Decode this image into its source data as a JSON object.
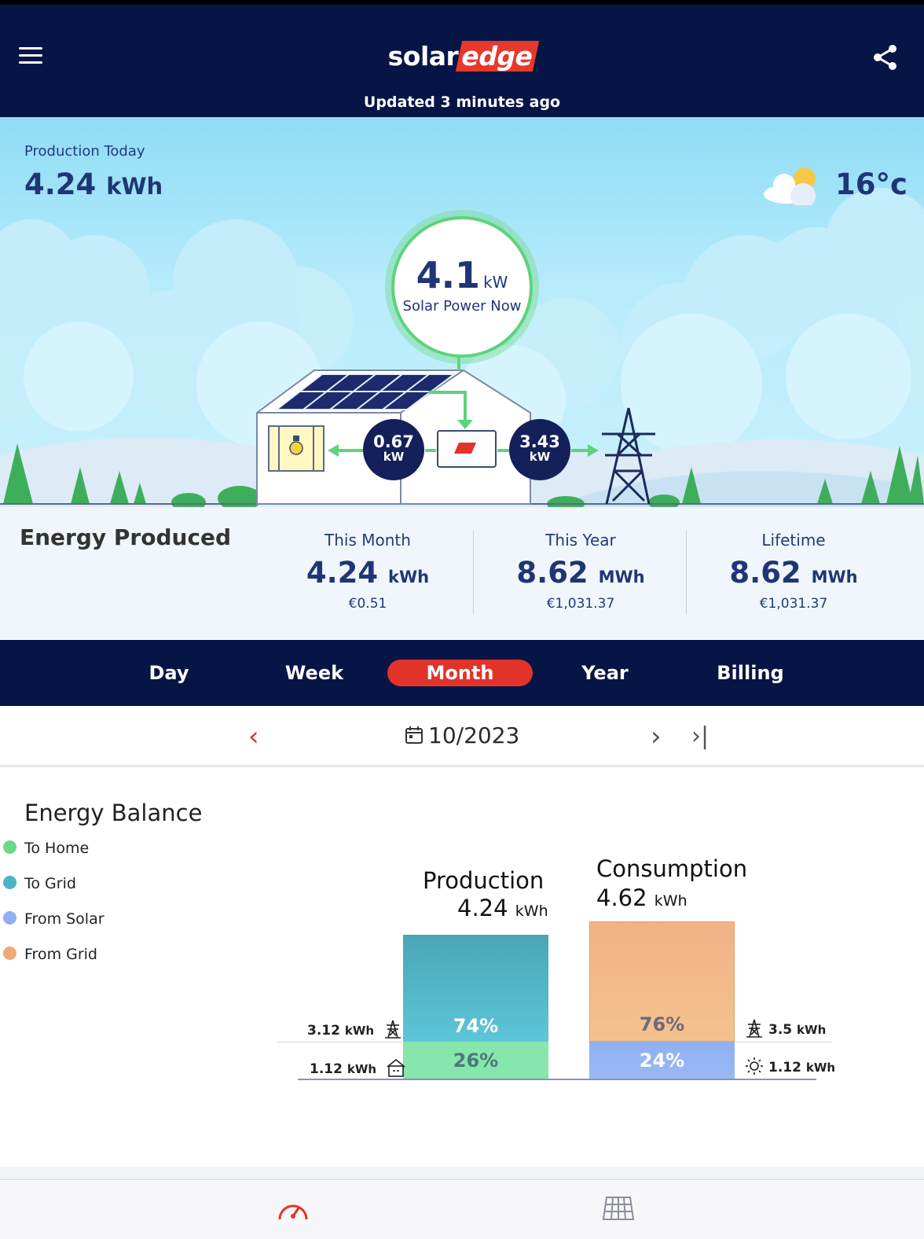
{
  "header": {
    "logo_left": "solar",
    "logo_right": "edge",
    "updated": "Updated 3 minutes ago"
  },
  "hero": {
    "production_label": "Production Today",
    "production_value": "4.24",
    "production_unit": "kWh",
    "temperature": "16°c",
    "solar_power_value": "4.1",
    "solar_power_unit": "kW",
    "solar_power_label": "Solar Power Now",
    "home_flow_value": "0.67",
    "home_flow_unit": "kW",
    "grid_flow_value": "3.43",
    "grid_flow_unit": "kW"
  },
  "energy_produced": {
    "title": "Energy Produced",
    "stats": [
      {
        "label": "This Month",
        "value": "4.24",
        "unit": "kWh",
        "money": "€0.51"
      },
      {
        "label": "This Year",
        "value": "8.62",
        "unit": "MWh",
        "money": "€1,031.37"
      },
      {
        "label": "Lifetime",
        "value": "8.62",
        "unit": "MWh",
        "money": "€1,031.37"
      }
    ]
  },
  "tabs": [
    "Day",
    "Week",
    "Month",
    "Year",
    "Billing"
  ],
  "active_tab": "Month",
  "date_nav": {
    "prev": "‹",
    "date": "10/2023",
    "next": "›",
    "last": "›|"
  },
  "energy_balance": {
    "title": "Energy Balance",
    "legend": [
      {
        "label": "To Home",
        "color": "#6ad98a"
      },
      {
        "label": "To Grid",
        "color": "#4ab3c5"
      },
      {
        "label": "From Solar",
        "color": "#8fb0f2"
      },
      {
        "label": "From Grid",
        "color": "#f0a878"
      }
    ],
    "production": {
      "title": "Production",
      "total_value": "4.24",
      "total_unit": "kWh",
      "to_grid_pct": "74%",
      "to_home_pct": "26%",
      "to_grid_kwh": "3.12",
      "to_home_kwh": "1.12",
      "unit": "kWh"
    },
    "consumption": {
      "title": "Consumption",
      "total_value": "4.62",
      "total_unit": "kWh",
      "from_grid_pct": "76%",
      "from_solar_pct": "24%",
      "from_grid_kwh": "3.5",
      "from_solar_kwh": "1.12",
      "unit": "kWh"
    }
  },
  "bottom_nav": [
    {
      "icon": "dashboard-gauge-icon"
    },
    {
      "icon": "solar-panel-layout-icon"
    }
  ],
  "colors": {
    "navy": "#061545",
    "accent_red": "#e2332a",
    "text_blue": "#1f3676"
  }
}
